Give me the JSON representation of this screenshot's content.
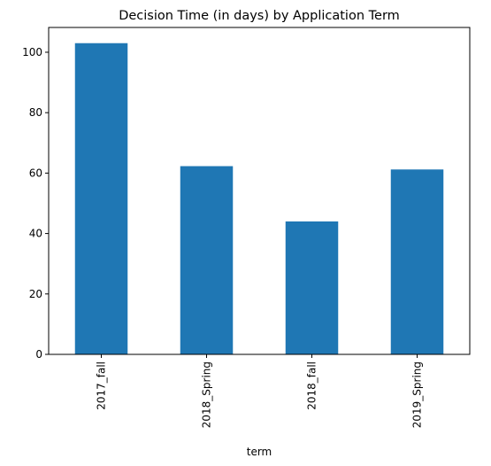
{
  "chart_data": {
    "type": "bar",
    "title": "Decision Time (in days) by Application Term",
    "xlabel": "term",
    "ylabel": "",
    "categories": [
      "2017_fall",
      "2018_Spring",
      "2018_fall",
      "2019_Spring"
    ],
    "values": [
      103,
      62.3,
      44,
      61.2
    ],
    "ylim": [
      0,
      108.2
    ],
    "yticks": [
      0,
      20,
      40,
      60,
      80,
      100
    ],
    "bar_color": "#1f77b4",
    "grid": false,
    "legend": false
  }
}
